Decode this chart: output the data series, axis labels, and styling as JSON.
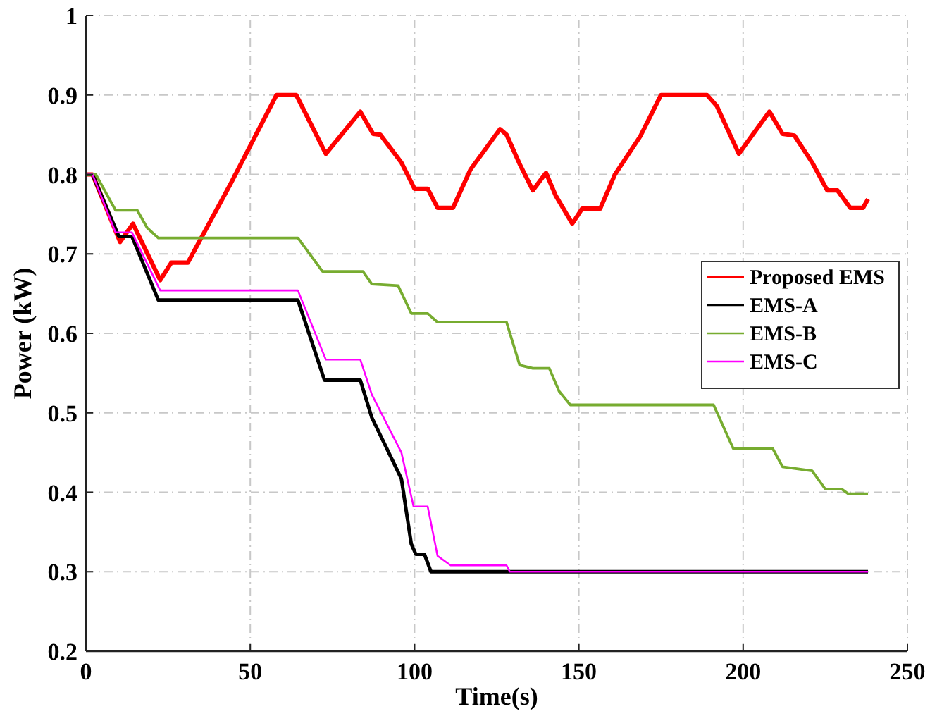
{
  "chart_data": {
    "type": "line",
    "xlabel": "Time(s)",
    "ylabel": "Power (kW)",
    "xlim": [
      0,
      250
    ],
    "xticks": [
      0,
      50,
      100,
      150,
      200,
      250
    ],
    "ylim": [
      0.2,
      1
    ],
    "yticks": [
      0.2,
      0.3,
      0.4,
      0.5,
      0.6,
      0.7,
      0.8,
      0.9,
      1
    ],
    "grid": true,
    "legend": "right",
    "line_style": "solid",
    "series": [
      {
        "name": "Proposed EMS",
        "color": "#ff0000",
        "x": [
          0,
          2,
          10.4,
          14.3,
          22.6,
          26,
          31,
          44,
          58,
          64,
          73,
          83.5,
          87.4,
          89.6,
          96,
          100,
          104,
          107,
          111.7,
          117,
          126,
          128,
          132,
          136,
          140,
          143,
          148,
          151,
          156.5,
          161,
          168.7,
          175,
          189,
          192,
          198.7,
          208,
          212,
          215.6,
          221,
          225.6,
          228.7,
          232.6,
          236.5,
          238
        ],
        "values": [
          0.8,
          0.8,
          0.715,
          0.738,
          0.667,
          0.689,
          0.689,
          0.788,
          0.9,
          0.9,
          0.826,
          0.879,
          0.851,
          0.85,
          0.815,
          0.782,
          0.782,
          0.758,
          0.758,
          0.806,
          0.857,
          0.85,
          0.813,
          0.78,
          0.802,
          0.773,
          0.738,
          0.757,
          0.757,
          0.8,
          0.848,
          0.9,
          0.9,
          0.886,
          0.826,
          0.879,
          0.851,
          0.849,
          0.815,
          0.78,
          0.78,
          0.758,
          0.758,
          0.769
        ]
      },
      {
        "name": "EMS-A",
        "color": "#000000",
        "x": [
          0,
          2,
          10,
          14,
          22,
          64.5,
          72.6,
          83.5,
          87,
          96,
          99,
          100.4,
          103,
          105,
          238
        ],
        "values": [
          0.8,
          0.8,
          0.722,
          0.722,
          0.642,
          0.642,
          0.541,
          0.541,
          0.494,
          0.417,
          0.335,
          0.322,
          0.322,
          0.3,
          0.3
        ]
      },
      {
        "name": "EMS-B",
        "color": "#77ac30",
        "x": [
          0,
          3,
          9,
          15.6,
          18.6,
          22,
          64.5,
          72,
          84.3,
          87,
          95,
          99,
          104,
          107,
          128,
          132,
          136,
          141,
          144,
          147.4,
          191,
          197,
          209,
          212,
          221,
          225,
          230,
          232,
          238
        ],
        "values": [
          0.8,
          0.8,
          0.755,
          0.755,
          0.733,
          0.72,
          0.72,
          0.678,
          0.678,
          0.662,
          0.66,
          0.625,
          0.625,
          0.614,
          0.614,
          0.56,
          0.556,
          0.556,
          0.527,
          0.51,
          0.51,
          0.455,
          0.455,
          0.432,
          0.427,
          0.404,
          0.404,
          0.398,
          0.398
        ]
      },
      {
        "name": "EMS-C",
        "color": "#ff00ff",
        "x": [
          0,
          2,
          9,
          14,
          22.6,
          64.5,
          73,
          83.5,
          87,
          96,
          99.7,
          104,
          107,
          111,
          128,
          129,
          238
        ],
        "values": [
          0.8,
          0.8,
          0.727,
          0.727,
          0.654,
          0.654,
          0.567,
          0.567,
          0.523,
          0.45,
          0.382,
          0.382,
          0.32,
          0.308,
          0.308,
          0.3,
          0.3
        ]
      }
    ]
  }
}
